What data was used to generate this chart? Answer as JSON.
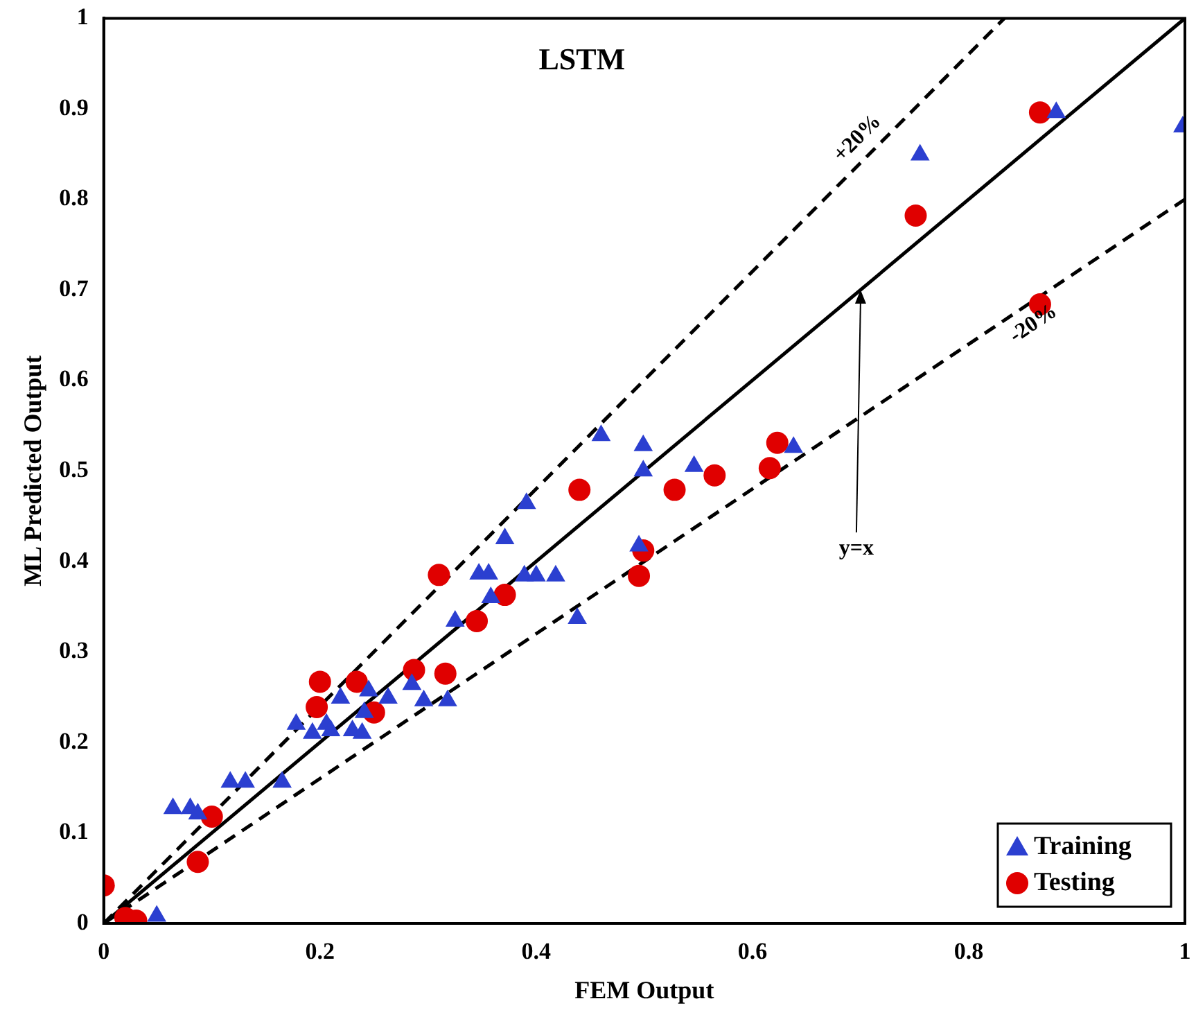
{
  "chart_data": {
    "type": "scatter",
    "title": "LSTM",
    "xlabel": "FEM Output",
    "ylabel": "ML Predicted Output",
    "xlim": [
      0,
      1
    ],
    "ylim": [
      0,
      1
    ],
    "xticks": [
      0,
      0.2,
      0.4,
      0.6,
      0.8,
      1
    ],
    "yticks": [
      0,
      0.1,
      0.2,
      0.3,
      0.4,
      0.5,
      0.6,
      0.7,
      0.8,
      0.9,
      1
    ],
    "grid": false,
    "legend": "bottom right",
    "series": [
      {
        "name": "Training",
        "color": "#2b3fd0",
        "marker": "triangle",
        "x": [
          0.049,
          0.064,
          0.08,
          0.087,
          0.117,
          0.131,
          0.165,
          0.178,
          0.193,
          0.206,
          0.21,
          0.219,
          0.23,
          0.239,
          0.241,
          0.245,
          0.263,
          0.285,
          0.296,
          0.318,
          0.325,
          0.347,
          0.356,
          0.358,
          0.371,
          0.389,
          0.391,
          0.4,
          0.418,
          0.438,
          0.46,
          0.495,
          0.499,
          0.499,
          0.546,
          0.638,
          0.755,
          0.881,
          0.998
        ],
        "values": [
          0.008,
          0.127,
          0.127,
          0.121,
          0.156,
          0.156,
          0.156,
          0.22,
          0.21,
          0.22,
          0.213,
          0.249,
          0.213,
          0.21,
          0.233,
          0.257,
          0.249,
          0.264,
          0.246,
          0.246,
          0.334,
          0.386,
          0.386,
          0.36,
          0.425,
          0.384,
          0.464,
          0.384,
          0.384,
          0.337,
          0.539,
          0.417,
          0.5,
          0.528,
          0.505,
          0.526,
          0.849,
          0.896,
          0.88
        ]
      },
      {
        "name": "Testing",
        "color": "#e00000",
        "marker": "circle",
        "x": [
          0,
          0.02,
          0.03,
          0.087,
          0.1,
          0.197,
          0.2,
          0.234,
          0.25,
          0.287,
          0.31,
          0.316,
          0.345,
          0.371,
          0.44,
          0.495,
          0.499,
          0.528,
          0.565,
          0.616,
          0.623,
          0.751,
          0.866,
          0.866
        ],
        "values": [
          0.042,
          0.006,
          0.003,
          0.068,
          0.118,
          0.239,
          0.267,
          0.267,
          0.233,
          0.28,
          0.385,
          0.276,
          0.334,
          0.363,
          0.479,
          0.384,
          0.412,
          0.479,
          0.495,
          0.503,
          0.531,
          0.782,
          0.896,
          0.684
        ]
      },
      {
        "type": "line",
        "color": "#000000",
        "line_style": "solid",
        "marker": "none",
        "x": [
          0,
          1
        ],
        "values": [
          0,
          1
        ]
      },
      {
        "type": "line",
        "color": "#000000",
        "line_style": "dashed",
        "marker": "none",
        "x": [
          0,
          0.833
        ],
        "values": [
          0,
          1
        ]
      },
      {
        "type": "line",
        "color": "#000000",
        "line_style": "dashed",
        "marker": "none",
        "x": [
          0,
          1
        ],
        "values": [
          0,
          0.8
        ]
      }
    ],
    "annotations": [
      {
        "text": "+20%",
        "x": 0.71,
        "y": 0.852
      },
      {
        "text": "-20%",
        "x": 0.85,
        "y": 0.68
      },
      {
        "text": "y=x",
        "x": 0.7,
        "y": 0.7
      }
    ]
  }
}
